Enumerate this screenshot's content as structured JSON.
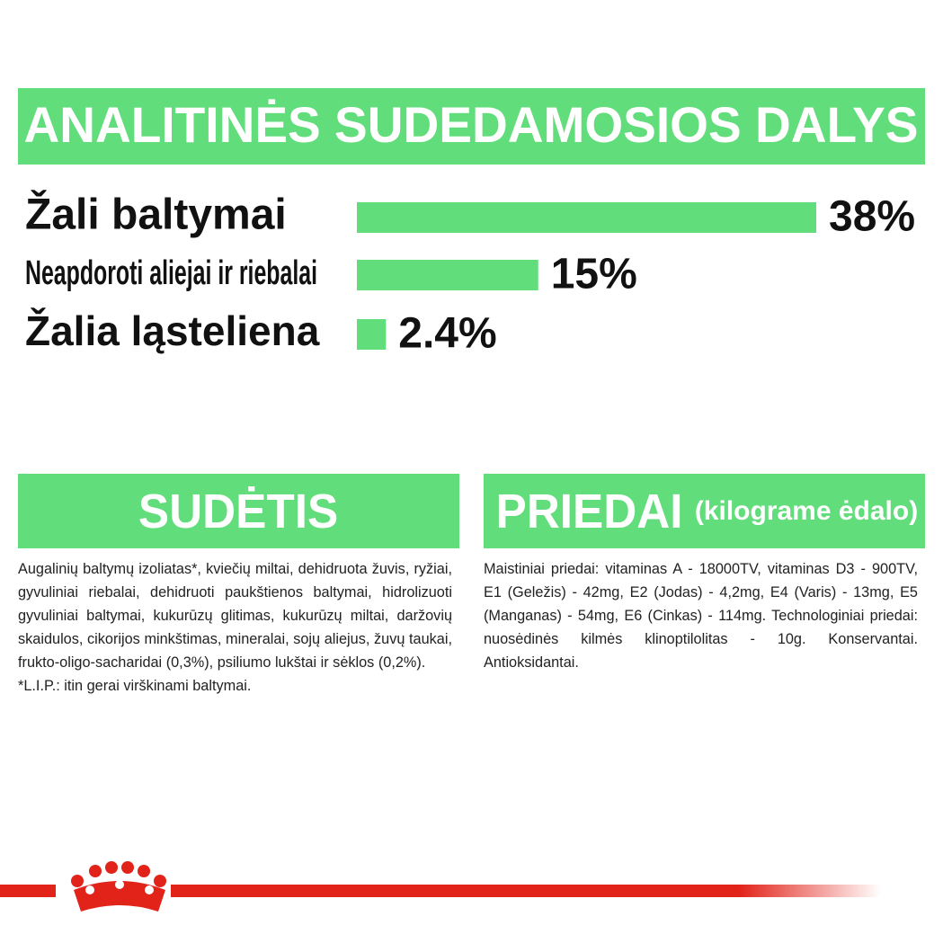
{
  "chart_data": {
    "type": "bar",
    "orientation": "horizontal",
    "title": "ANALITINĖS SUDEDAMOSIOS DALYS",
    "categories": [
      "Žali baltymai",
      "Neapdoroti aliejai ir riebalai",
      "Žalia ląsteliena"
    ],
    "values": [
      38,
      15,
      2.4
    ],
    "value_labels": [
      "38%",
      "15%",
      "2.4%"
    ],
    "color": "#62dd7b"
  },
  "sections": [
    {
      "title": "SUDĖTIS",
      "paragraphs": [
        "Augalinių baltymų izoliatas*, kviečių miltai, dehidruota žuvis, ryžiai, gyvuliniai riebalai, dehidruoti paukštienos baltymai, hidrolizuoti gyvuliniai baltymai, kukurūzų glitimas, kukurūzų miltai, daržovių skaidulos, cikorijos minkštimas, mineralai, sojų aliejus, žuvų taukai, frukto-oligo-sacharidai (0,3%), psiliumo lukštai ir sėklos (0,2%).",
        "*L.I.P.: itin gerai virškinami baltymai."
      ]
    },
    {
      "title": "PRIEDAI",
      "subtitle": "(kilograme ėdalo)",
      "paragraphs": [
        "Maistiniai priedai: vitaminas A - 18000TV, vitaminas D3 - 900TV, E1 (Geležis) - 42mg, E2 (Jodas) - 4,2mg, E4 (Varis) - 13mg, E5 (Manganas) - 54mg, E6 (Cinkas) - 114mg. Technologiniai priedai: nuosėdinės kilmės klinoptilolitas - 10g. Konservantai. Antioksidantai."
      ]
    }
  ]
}
